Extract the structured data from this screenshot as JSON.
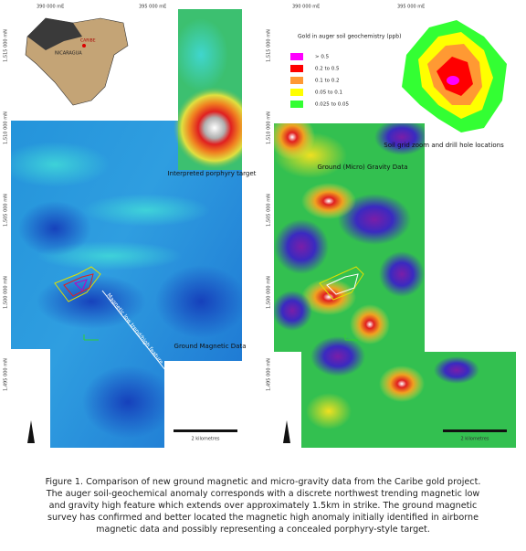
{
  "left_map": {
    "top_labels": [
      "390 000 mE",
      "395 000 mE"
    ],
    "side_labels": [
      "1,515 000 mN",
      "1,510 000 mN",
      "1,505 000 mN",
      "1,500 000 mN",
      "1,495 000 mN"
    ],
    "inset_labels": [
      "NICARAGUA",
      "CARIBE"
    ],
    "annotations": [
      "Interpreted porphyry target",
      "Magnetic low trend/high feature"
    ],
    "panel_title": "Ground Magnetic Data",
    "scale_label": "2 kilometres"
  },
  "right_map": {
    "top_labels": [
      "390 000 mE",
      "395 000 mE"
    ],
    "side_labels": [
      "1,515 000 mN",
      "1,510 000 mN",
      "1,505 000 mN",
      "1,500 000 mN",
      "1,495 000 mN"
    ],
    "legend": {
      "title": "Gold in auger soil geochemistry (ppb)",
      "items": [
        {
          "label": "> 0.5",
          "color": "#ff00ff"
        },
        {
          "label": "0.2 to 0.5",
          "color": "#ff0000"
        },
        {
          "label": "0.1 to 0.2",
          "color": "#ff9933"
        },
        {
          "label": "0.05 to 0.1",
          "color": "#ffff00"
        },
        {
          "label": "0.025 to 0.05",
          "color": "#33ff33"
        }
      ]
    },
    "inset_caption": "Soil grid zoom and drill hole locations",
    "panel_title": "Ground (Micro) Gravity Data",
    "scale_label": "2 kilometres"
  },
  "caption": [
    "Figure 1. Comparison of new ground magnetic and micro-gravity data from the Caribe gold project.",
    "The auger soil-geochemical anomaly corresponds with a discrete northwest trending magnetic low",
    "and gravity high feature which extends over approximately 1.5km in strike. The ground magnetic",
    "survey has confirmed and better located the magnetic high anomaly initially identified in airborne",
    "magnetic data and possibly representing a concealed porphyry-style target."
  ]
}
